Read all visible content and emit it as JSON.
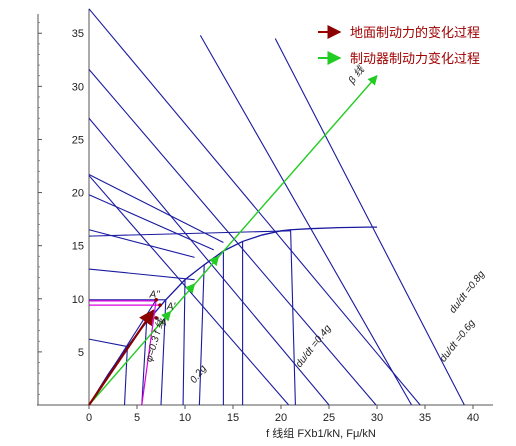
{
  "chart_data": {
    "type": "line",
    "xlabel": "f 线组     FXb1/kN, Fμ/kN",
    "xlim": [
      0,
      40
    ],
    "ylim": [
      0,
      37
    ],
    "x_ticks": [
      0,
      5,
      10,
      15,
      20,
      25,
      30,
      35,
      40
    ],
    "y_ticks": [
      5,
      10,
      15,
      20,
      25,
      30,
      35
    ],
    "legend": [
      {
        "label": "地面制动力的变化过程",
        "color": "#a00000",
        "marker": "red-arrow"
      },
      {
        "label": "制动器制动力变化过程",
        "color": "#22cc22",
        "marker": "green-arrow"
      }
    ],
    "i_curve": {
      "name": "",
      "color": "#1a1aa0",
      "x": [
        0,
        2,
        4,
        6,
        8,
        10,
        12,
        14,
        16,
        18,
        20,
        21,
        23,
        26,
        29,
        30
      ],
      "y": [
        0,
        2.9,
        5.5,
        7.8,
        9.9,
        11.8,
        13.2,
        14.5,
        15.4,
        16.0,
        16.4,
        16.5,
        16.6,
        16.7,
        16.75,
        16.75
      ]
    },
    "f_lines": {
      "color": "#1a1aa0",
      "segments": [
        [
          [
            0,
            9.9
          ],
          [
            8,
            9.9
          ]
        ],
        [
          [
            0,
            12.8
          ],
          [
            11,
            11.8
          ]
        ],
        [
          [
            0,
            15.9
          ],
          [
            21,
            16.4
          ]
        ],
        [
          [
            0,
            16.5
          ],
          [
            11,
            13.9
          ]
        ],
        [
          [
            0,
            19.8
          ],
          [
            13,
            14.6
          ]
        ],
        [
          [
            0,
            21.7
          ],
          [
            14,
            15.3
          ]
        ],
        [
          [
            0,
            6.2
          ],
          [
            4,
            5.5
          ]
        ],
        [
          [
            4,
            5.5
          ],
          [
            3.7,
            0
          ]
        ],
        [
          [
            6,
            7.8
          ],
          [
            5.5,
            0
          ]
        ],
        [
          [
            8,
            9.9
          ],
          [
            7.5,
            0
          ]
        ],
        [
          [
            10,
            11.8
          ],
          [
            9.8,
            0
          ]
        ],
        [
          [
            12,
            13.2
          ],
          [
            11.5,
            0
          ]
        ],
        [
          [
            14,
            14.5
          ],
          [
            14,
            0
          ]
        ],
        [
          [
            16,
            15.4
          ],
          [
            16,
            0
          ]
        ],
        [
          [
            21,
            16.5
          ],
          [
            21.5,
            0
          ]
        ]
      ]
    },
    "r_lines": {
      "color": "#1a1aa0",
      "segments": [
        [
          [
            0,
            37.3
          ],
          [
            34.5,
            0
          ]
        ],
        [
          [
            0,
            31.6
          ],
          [
            29.9,
            0
          ]
        ],
        [
          [
            0,
            27.0
          ],
          [
            25.0,
            0
          ]
        ],
        [
          [
            0,
            21.6
          ],
          [
            20.8,
            0
          ]
        ],
        [
          [
            11.6,
            34.8
          ],
          [
            33.6,
            0
          ]
        ],
        [
          [
            19.4,
            34.5
          ],
          [
            39.1,
            0
          ]
        ]
      ]
    },
    "beta_line": {
      "x": [
        0,
        30.0
      ],
      "y": [
        0,
        31.0
      ],
      "color": "#22cc22"
    },
    "ground_force_arrow": {
      "x": [
        0,
        6.7
      ],
      "y": [
        0,
        8.9
      ],
      "color": "#8b0000"
    },
    "phi_line": {
      "x": [
        0,
        7.0
      ],
      "y": [
        0,
        9.9
      ],
      "color": "#1a1aa0"
    },
    "magenta_lines": {
      "color": "#dd00dd",
      "segments": [
        [
          [
            0,
            9.8
          ],
          [
            7,
            9.8
          ]
        ],
        [
          [
            0,
            9.4
          ],
          [
            7.4,
            9.4
          ]
        ],
        [
          [
            5.5,
            0
          ],
          [
            7.0,
            9.9
          ]
        ]
      ]
    },
    "annotations": [
      {
        "text": "β 线",
        "x": 27.5,
        "y": 30.2,
        "rotate": -52
      },
      {
        "text": "φ=0.3 f 线",
        "x": 6.5,
        "y": 4.0,
        "rotate": -73
      },
      {
        "text": "0.2g",
        "x": 11.0,
        "y": 2.0,
        "rotate": -52
      },
      {
        "text": "du/dt =0.4g",
        "x": 22.0,
        "y": 3.5,
        "rotate": -52
      },
      {
        "text": "du/dt =0.6g",
        "x": 37.0,
        "y": 4.0,
        "rotate": -52
      },
      {
        "text": "du/dt =0.8g",
        "x": 38.0,
        "y": 8.6,
        "rotate": -52
      },
      {
        "text": "A",
        "x": 7.4,
        "y": 7.5,
        "rotate": 0
      },
      {
        "text": "A'",
        "x": 8.1,
        "y": 9.0,
        "rotate": 0
      },
      {
        "text": "A''",
        "x": 6.3,
        "y": 10.1,
        "rotate": 0
      }
    ]
  }
}
